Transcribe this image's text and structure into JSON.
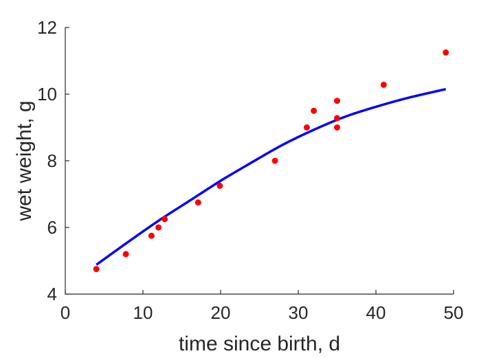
{
  "chart_data": {
    "type": "scatter",
    "xlabel": "time since birth, d",
    "ylabel": "wet weight, g",
    "xlim": [
      0,
      50
    ],
    "ylim": [
      4,
      12
    ],
    "xticks": [
      0,
      10,
      20,
      30,
      40,
      50
    ],
    "yticks": [
      4,
      6,
      8,
      10,
      12
    ],
    "xtick_labels": [
      "0",
      "10",
      "20",
      "30",
      "40",
      "50"
    ],
    "ytick_labels": [
      "4",
      "6",
      "8",
      "10",
      "12"
    ],
    "grid": false,
    "series": [
      {
        "type": "scatter",
        "color": "#ff0000",
        "points": [
          [
            4,
            4.75
          ],
          [
            7.8,
            5.2
          ],
          [
            11.1,
            5.75
          ],
          [
            12,
            6.0
          ],
          [
            12.8,
            6.25
          ],
          [
            17.1,
            6.75
          ],
          [
            19.9,
            7.25
          ],
          [
            27,
            8.0
          ],
          [
            31.1,
            9.0
          ],
          [
            32,
            9.5
          ],
          [
            35,
            9.8
          ],
          [
            35,
            9.28
          ],
          [
            35,
            9.0
          ],
          [
            41,
            10.28
          ],
          [
            49,
            11.25
          ]
        ]
      },
      {
        "type": "line",
        "color": "#0000ff",
        "points": [
          [
            4,
            4.88
          ],
          [
            8,
            5.55
          ],
          [
            12,
            6.2
          ],
          [
            16,
            6.8
          ],
          [
            20,
            7.4
          ],
          [
            24,
            7.95
          ],
          [
            28,
            8.48
          ],
          [
            32,
            8.93
          ],
          [
            36,
            9.32
          ],
          [
            40,
            9.62
          ],
          [
            44,
            9.88
          ],
          [
            49,
            10.15
          ]
        ]
      }
    ]
  }
}
